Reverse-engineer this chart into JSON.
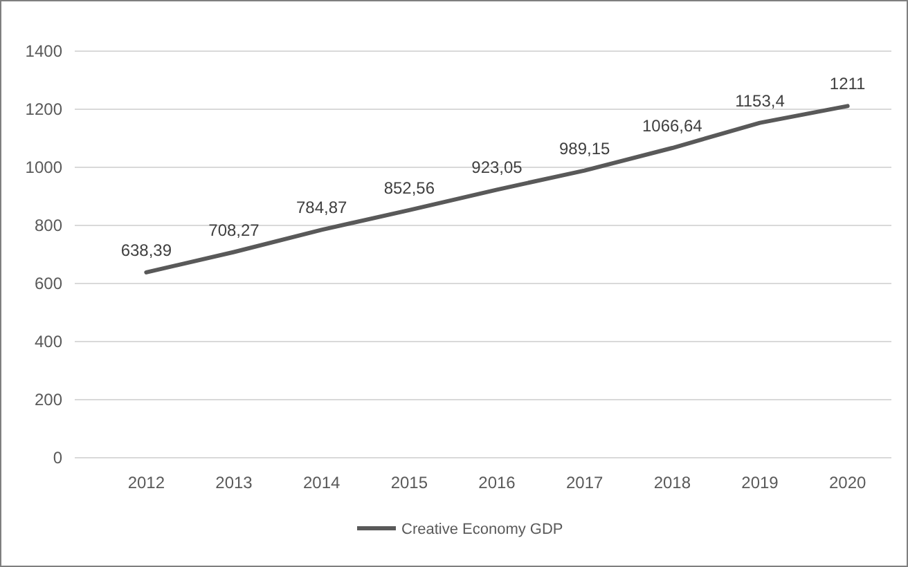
{
  "chart_data": {
    "type": "line",
    "categories": [
      "2012",
      "2013",
      "2014",
      "2015",
      "2016",
      "2017",
      "2018",
      "2019",
      "2020"
    ],
    "series": [
      {
        "name": "Creative Economy GDP",
        "color": "#595959",
        "values": [
          638.39,
          708.27,
          784.87,
          852.56,
          923.05,
          989.15,
          1066.64,
          1153.4,
          1211
        ],
        "value_labels": [
          "638,39",
          "708,27",
          "784,87",
          "852,56",
          "923,05",
          "989,15",
          "1066,64",
          "1153,4",
          "1211"
        ]
      }
    ],
    "ylim": [
      0,
      1400
    ],
    "yticks": [
      0,
      200,
      400,
      600,
      800,
      1000,
      1200,
      1400
    ],
    "grid": "y",
    "legend": "bottom",
    "marker": "none",
    "line_style": "solid"
  }
}
